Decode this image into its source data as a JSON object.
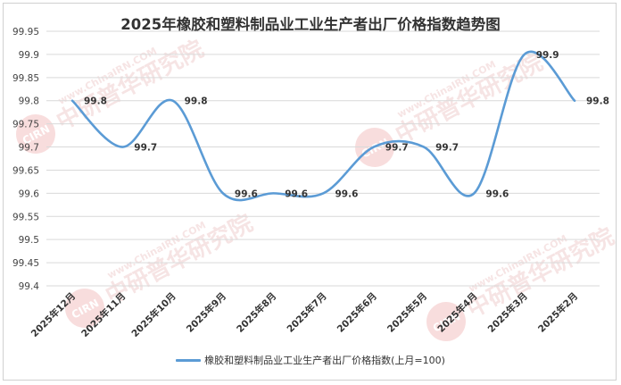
{
  "chart_data": {
    "type": "line",
    "title": "2025年橡胶和塑料制品业工业生产者出厂价格指数趋势图",
    "categories": [
      "2025年12月",
      "2025年11月",
      "2025年10月",
      "2025年9月",
      "2025年8月",
      "2025年7月",
      "2025年6月",
      "2025年5月",
      "2025年4月",
      "2025年3月",
      "2025年2月"
    ],
    "series": [
      {
        "name": "橡胶和塑料制品业工业生产者出厂价格指数(上月=100)",
        "values": [
          99.8,
          99.7,
          99.8,
          99.6,
          99.6,
          99.6,
          99.7,
          99.7,
          99.6,
          99.9,
          99.8
        ],
        "color": "#5b9bd5"
      }
    ],
    "yticks": [
      "99.4",
      "99.45",
      "99.5",
      "99.55",
      "99.6",
      "99.65",
      "99.7",
      "99.75",
      "99.8",
      "99.85",
      "99.9",
      "99.95"
    ],
    "ylim": [
      99.4,
      99.95
    ],
    "grid": true,
    "legend_position": "bottom"
  },
  "watermark": {
    "logo_text": "CIRN",
    "cn_text": "中研普华研究院",
    "en_text": "www.ChinaIRN.COM"
  }
}
